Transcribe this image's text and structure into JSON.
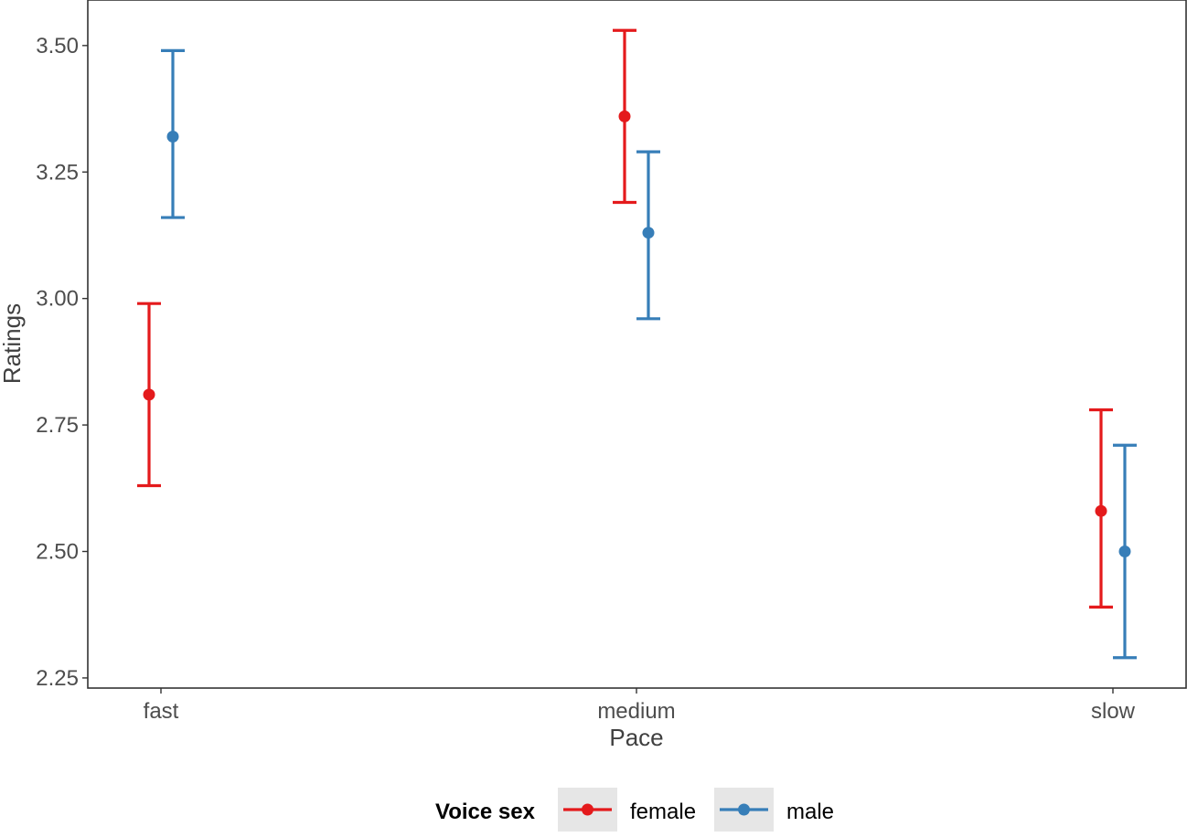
{
  "chart_data": {
    "type": "scatter",
    "subtype": "point-errorbar",
    "categories": [
      "fast",
      "medium",
      "slow"
    ],
    "xlabel": "Pace",
    "ylabel": "Ratings",
    "ylim": [
      2.23,
      3.59
    ],
    "yticks": [
      2.25,
      2.5,
      2.75,
      3.0,
      3.25,
      3.5
    ],
    "ytick_labels": [
      "2.25",
      "2.50",
      "2.75",
      "3.00",
      "3.25",
      "3.50"
    ],
    "grid": false,
    "legend": {
      "title": "Voice sex",
      "placement": "bottom",
      "entries": [
        "female",
        "male"
      ]
    },
    "series": [
      {
        "name": "female",
        "color": "#e41a1c",
        "values": [
          2.81,
          3.36,
          2.58
        ],
        "lower": [
          2.63,
          3.19,
          2.39
        ],
        "upper": [
          2.99,
          3.53,
          2.78
        ]
      },
      {
        "name": "male",
        "color": "#377eb8",
        "values": [
          3.32,
          3.13,
          2.5
        ],
        "lower": [
          3.16,
          2.96,
          2.29
        ],
        "upper": [
          3.49,
          3.29,
          2.71
        ]
      }
    ]
  }
}
